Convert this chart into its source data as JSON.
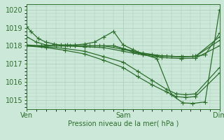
{
  "xlabel": "Pression niveau de la mer( hPa )",
  "bg_color": "#cce8d8",
  "grid_color": "#aaccbb",
  "line_color": "#2d6e2d",
  "markersize": 4,
  "linewidth": 0.9,
  "xlim": [
    0,
    2.0
  ],
  "ylim": [
    1014.5,
    1020.3
  ],
  "yticks": [
    1015,
    1016,
    1017,
    1018,
    1019,
    1020
  ],
  "xtick_labels": [
    "Ven",
    "Sam",
    "Dim"
  ],
  "xtick_pos": [
    0,
    1.0,
    2.0
  ],
  "series": [
    {
      "x": [
        0.0,
        0.04,
        0.12,
        0.2,
        0.28,
        0.35,
        0.42,
        0.5,
        0.6,
        0.7,
        0.8,
        0.9,
        1.0,
        1.1,
        1.2,
        1.35,
        1.5,
        1.62,
        1.72,
        1.85,
        2.0
      ],
      "y": [
        1019.05,
        1018.8,
        1018.4,
        1018.2,
        1018.1,
        1018.05,
        1018.05,
        1018.05,
        1018.1,
        1018.2,
        1018.5,
        1018.8,
        1018.05,
        1017.8,
        1017.55,
        1017.3,
        1015.3,
        1014.85,
        1014.82,
        1014.9,
        1020.0
      ]
    },
    {
      "x": [
        0.0,
        0.1,
        0.2,
        0.3,
        0.4,
        0.5,
        0.6,
        0.7,
        0.8,
        0.9,
        1.0,
        1.1,
        1.2,
        1.35,
        1.5,
        1.62,
        1.72,
        1.85,
        2.0
      ],
      "y": [
        1018.5,
        1018.2,
        1018.05,
        1018.0,
        1018.0,
        1018.0,
        1018.0,
        1018.0,
        1018.0,
        1018.0,
        1017.85,
        1017.65,
        1017.55,
        1017.45,
        1017.42,
        1017.4,
        1017.42,
        1017.5,
        1018.7
      ]
    },
    {
      "x": [
        0.0,
        0.15,
        0.3,
        0.45,
        0.6,
        0.75,
        0.9,
        1.0,
        1.15,
        1.3,
        1.45,
        1.6,
        1.75,
        2.0
      ],
      "y": [
        1018.05,
        1018.0,
        1018.0,
        1018.0,
        1018.0,
        1018.0,
        1018.0,
        1017.85,
        1017.65,
        1017.5,
        1017.42,
        1017.4,
        1017.42,
        1018.5
      ]
    },
    {
      "x": [
        0.0,
        0.15,
        0.35,
        0.5,
        0.65,
        0.8,
        1.0,
        1.2,
        1.4,
        1.6,
        1.75,
        2.0
      ],
      "y": [
        1018.0,
        1018.0,
        1018.0,
        1018.0,
        1018.0,
        1018.0,
        1017.8,
        1017.6,
        1017.45,
        1017.4,
        1017.42,
        1018.3
      ]
    },
    {
      "x": [
        0.0,
        0.2,
        0.4,
        0.6,
        0.8,
        1.0,
        1.2,
        1.4,
        1.6,
        1.75,
        2.0
      ],
      "y": [
        1018.0,
        1018.0,
        1018.0,
        1017.95,
        1017.9,
        1017.7,
        1017.5,
        1017.35,
        1017.3,
        1017.32,
        1018.0
      ]
    },
    {
      "x": [
        0.0,
        0.2,
        0.4,
        0.6,
        0.8,
        1.0,
        1.15,
        1.3,
        1.45,
        1.55,
        1.65,
        1.75,
        2.0
      ],
      "y": [
        1018.0,
        1017.95,
        1017.85,
        1017.7,
        1017.4,
        1017.1,
        1016.6,
        1016.1,
        1015.6,
        1015.35,
        1015.3,
        1015.35,
        1016.8
      ]
    },
    {
      "x": [
        0.0,
        0.2,
        0.4,
        0.6,
        0.8,
        1.0,
        1.15,
        1.3,
        1.45,
        1.55,
        1.65,
        1.75,
        2.0
      ],
      "y": [
        1018.0,
        1017.9,
        1017.75,
        1017.55,
        1017.2,
        1016.8,
        1016.3,
        1015.85,
        1015.45,
        1015.2,
        1015.15,
        1015.2,
        1016.5
      ]
    }
  ]
}
